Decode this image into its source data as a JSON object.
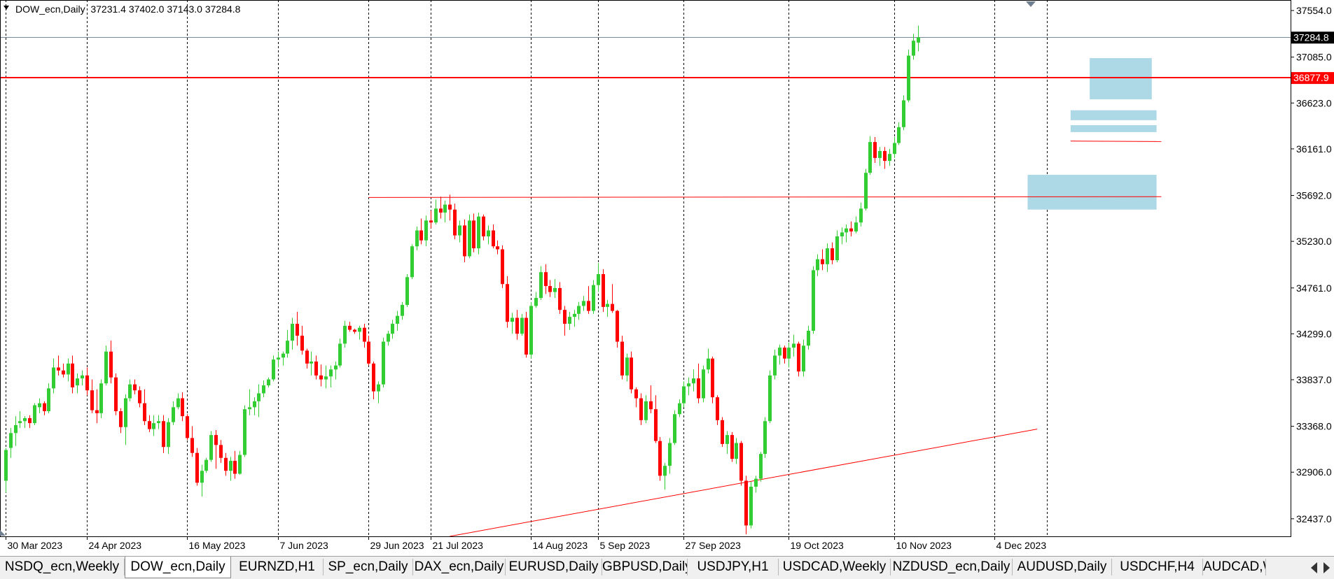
{
  "window": {
    "info_label": "DOW_ecn,Daily  37231.4 37402.0 37143.0 37284.8"
  },
  "tabs": [
    {
      "label": "NSDQ_ecn,Weekly",
      "active": false
    },
    {
      "label": "DOW_ecn,Daily",
      "active": true
    },
    {
      "label": "EURNZD,H1",
      "active": false
    },
    {
      "label": "SP_ecn,Daily",
      "active": false
    },
    {
      "label": "DAX_ecn,Daily",
      "active": false
    },
    {
      "label": "EURUSD,Daily",
      "active": false
    },
    {
      "label": "GBPUSD,Daily",
      "active": false
    },
    {
      "label": "USDJPY,H1",
      "active": false
    },
    {
      "label": "USDCAD,Weekly",
      "active": false
    },
    {
      "label": "NZDUSD_ecn,Daily",
      "active": false
    },
    {
      "label": "AUDUSD,Daily",
      "active": false
    },
    {
      "label": "USDCHF,H4",
      "active": false
    },
    {
      "label": "AUDCAD,W",
      "active": false
    }
  ],
  "colors": {
    "bull": "#32cd32",
    "bear": "#ff0000",
    "zone": "#add8e6",
    "hline": "#ff0000",
    "bid_line": "#778899",
    "grid": "#000000",
    "axis_text": "#000000"
  },
  "chart_data": {
    "type": "candlestick",
    "symbol": "DOW_ecn",
    "timeframe": "Daily",
    "ohlc": {
      "open": 37231.4,
      "high": 37402.0,
      "low": 37143.0,
      "close": 37284.8
    },
    "ylim": [
      32260,
      37660
    ],
    "y_ticks": [
      37554.0,
      37085.0,
      36623.0,
      36161.0,
      35692.0,
      35230.0,
      34761.0,
      34299.0,
      33837.0,
      33368.0,
      32906.0,
      32437.0
    ],
    "x_tick_labels": [
      "30 Mar 2023",
      "24 Apr 2023",
      "16 May 2023",
      "7 Jun 2023",
      "29 Jun 2023",
      "21 Jul 2023",
      "14 Aug 2023",
      "5 Sep 2023",
      "27 Sep 2023",
      "19 Oct 2023",
      "10 Nov 2023",
      "4 Dec 2023"
    ],
    "separator_labels_index": [
      0,
      17,
      38,
      57,
      76,
      89,
      110,
      124,
      142,
      164,
      186,
      207,
      218
    ],
    "current_price": 37284.8,
    "levels": [
      {
        "price": 36877.9,
        "label": "36877.9"
      }
    ],
    "price_marker": {
      "value": 37284.8,
      "label": "37284.8"
    },
    "support_lines": [
      {
        "kind": "horizontal",
        "x0": 76,
        "x1": 242,
        "y0": 35672,
        "y1": 35680
      },
      {
        "kind": "horizontal",
        "x0": 223,
        "x1": 242,
        "y0": 36240,
        "y1": 36235
      },
      {
        "kind": "trend",
        "x0": 93,
        "x1": 216,
        "y0": 32260,
        "y1": 33340
      }
    ],
    "zones": [
      {
        "x0": 227,
        "x1": 240,
        "y0": 36660,
        "y1": 37075
      },
      {
        "x0": 223,
        "x1": 241,
        "y0": 36450,
        "y1": 36550
      },
      {
        "x0": 223,
        "x1": 241,
        "y0": 36330,
        "y1": 36400
      },
      {
        "x0": 214,
        "x1": 241,
        "y0": 35550,
        "y1": 35900
      }
    ],
    "candles": [
      [
        32820,
        33150,
        32700,
        33130
      ],
      [
        33150,
        33350,
        33050,
        33300
      ],
      [
        33300,
        33470,
        33170,
        33380
      ],
      [
        33400,
        33520,
        33350,
        33420
      ],
      [
        33420,
        33470,
        33350,
        33450
      ],
      [
        33450,
        33480,
        33350,
        33400
      ],
      [
        33400,
        33600,
        33380,
        33580
      ],
      [
        33560,
        33650,
        33500,
        33600
      ],
      [
        33600,
        33620,
        33480,
        33520
      ],
      [
        33520,
        33800,
        33500,
        33750
      ],
      [
        33750,
        34050,
        33700,
        33960
      ],
      [
        33960,
        34080,
        33880,
        33930
      ],
      [
        33930,
        34000,
        33860,
        33890
      ],
      [
        33890,
        34050,
        33820,
        34000
      ],
      [
        34000,
        34080,
        33700,
        33760
      ],
      [
        33780,
        33900,
        33700,
        33850
      ],
      [
        33850,
        33930,
        33780,
        33880
      ],
      [
        33880,
        33960,
        33680,
        33730
      ],
      [
        33730,
        33840,
        33500,
        33530
      ],
      [
        33530,
        33740,
        33400,
        33500
      ],
      [
        33500,
        33840,
        33450,
        33800
      ],
      [
        33800,
        34180,
        33780,
        34120
      ],
      [
        34120,
        34230,
        33800,
        33860
      ],
      [
        33860,
        33900,
        33480,
        33520
      ],
      [
        33520,
        33550,
        33300,
        33360
      ],
      [
        33360,
        33690,
        33180,
        33650
      ],
      [
        33650,
        33840,
        33620,
        33790
      ],
      [
        33790,
        33840,
        33690,
        33730
      ],
      [
        33730,
        33770,
        33560,
        33600
      ],
      [
        33600,
        33740,
        33380,
        33420
      ],
      [
        33420,
        33480,
        33310,
        33340
      ],
      [
        33340,
        33480,
        33270,
        33400
      ],
      [
        33400,
        33480,
        33340,
        33420
      ],
      [
        33420,
        33480,
        33100,
        33160
      ],
      [
        33160,
        33450,
        33090,
        33410
      ],
      [
        33410,
        33620,
        33380,
        33560
      ],
      [
        33560,
        33700,
        33540,
        33650
      ],
      [
        33650,
        33710,
        33420,
        33470
      ],
      [
        33470,
        33490,
        33230,
        33250
      ],
      [
        33250,
        33370,
        33060,
        33100
      ],
      [
        33100,
        33150,
        32770,
        32800
      ],
      [
        32800,
        32980,
        32660,
        32920
      ],
      [
        32920,
        33050,
        32900,
        33030
      ],
      [
        33030,
        33320,
        33010,
        33280
      ],
      [
        33280,
        33330,
        32940,
        33180
      ],
      [
        33180,
        33230,
        33000,
        33050
      ],
      [
        33050,
        33100,
        32870,
        32920
      ],
      [
        32920,
        33060,
        32820,
        33020
      ],
      [
        33020,
        33120,
        32840,
        32890
      ],
      [
        32890,
        33120,
        32880,
        33080
      ],
      [
        33080,
        33580,
        33060,
        33540
      ],
      [
        33540,
        33740,
        33480,
        33560
      ],
      [
        33560,
        33660,
        33480,
        33620
      ],
      [
        33620,
        33790,
        33460,
        33700
      ],
      [
        33700,
        33830,
        33660,
        33780
      ],
      [
        33780,
        33860,
        33760,
        33840
      ],
      [
        33840,
        34080,
        33820,
        34040
      ],
      [
        34040,
        34120,
        33960,
        34060
      ],
      [
        34060,
        34120,
        33980,
        34100
      ],
      [
        34100,
        34340,
        34060,
        34230
      ],
      [
        34230,
        34460,
        34140,
        34400
      ],
      [
        34400,
        34520,
        34180,
        34280
      ],
      [
        34280,
        34380,
        34090,
        34130
      ],
      [
        34130,
        34150,
        33950,
        34000
      ],
      [
        34000,
        34120,
        33880,
        34020
      ],
      [
        34020,
        34080,
        33840,
        33880
      ],
      [
        33880,
        33990,
        33770,
        33840
      ],
      [
        33840,
        33980,
        33750,
        33870
      ],
      [
        33870,
        33980,
        33760,
        33940
      ],
      [
        33940,
        34020,
        33840,
        33980
      ],
      [
        33980,
        34250,
        33960,
        34200
      ],
      [
        34200,
        34430,
        34160,
        34380
      ],
      [
        34380,
        34420,
        34320,
        34340
      ],
      [
        34340,
        34350,
        34300,
        34320
      ],
      [
        34320,
        34380,
        34240,
        34360
      ],
      [
        34360,
        34400,
        34160,
        34220
      ],
      [
        34220,
        34280,
        33980,
        34000
      ],
      [
        34000,
        34020,
        33640,
        33720
      ],
      [
        33720,
        33820,
        33600,
        33790
      ],
      [
        33790,
        34260,
        33760,
        34220
      ],
      [
        34220,
        34330,
        34180,
        34300
      ],
      [
        34300,
        34440,
        34250,
        34400
      ],
      [
        34400,
        34530,
        34330,
        34480
      ],
      [
        34480,
        34620,
        34440,
        34590
      ],
      [
        34590,
        34900,
        34570,
        34870
      ],
      [
        34870,
        35200,
        34850,
        35180
      ],
      [
        35180,
        35380,
        35140,
        35340
      ],
      [
        35340,
        35460,
        35200,
        35240
      ],
      [
        35240,
        35490,
        35180,
        35440
      ],
      [
        35440,
        35540,
        35360,
        35420
      ],
      [
        35420,
        35650,
        35400,
        35560
      ],
      [
        35560,
        35680,
        35460,
        35520
      ],
      [
        35520,
        35640,
        35420,
        35600
      ],
      [
        35600,
        35700,
        35440,
        35550
      ],
      [
        35550,
        35610,
        35250,
        35290
      ],
      [
        35290,
        35440,
        35220,
        35390
      ],
      [
        35390,
        35450,
        35020,
        35080
      ],
      [
        35080,
        35500,
        35060,
        35440
      ],
      [
        35440,
        35510,
        35120,
        35160
      ],
      [
        35160,
        35520,
        35100,
        35480
      ],
      [
        35480,
        35500,
        35240,
        35280
      ],
      [
        35280,
        35390,
        35200,
        35340
      ],
      [
        35340,
        35400,
        35160,
        35180
      ],
      [
        35180,
        35240,
        35100,
        35150
      ],
      [
        35150,
        35190,
        34760,
        34800
      ],
      [
        34800,
        34880,
        34360,
        34420
      ],
      [
        34420,
        34510,
        34300,
        34460
      ],
      [
        34460,
        34540,
        34240,
        34300
      ],
      [
        34300,
        34500,
        34280,
        34460
      ],
      [
        34460,
        34520,
        34060,
        34090
      ],
      [
        34090,
        34620,
        34050,
        34580
      ],
      [
        34580,
        34720,
        34560,
        34660
      ],
      [
        34660,
        34980,
        34640,
        34920
      ],
      [
        34920,
        35000,
        34700,
        34780
      ],
      [
        34780,
        34840,
        34670,
        34720
      ],
      [
        34720,
        34850,
        34660,
        34760
      ],
      [
        34760,
        34820,
        34500,
        34540
      ],
      [
        34540,
        34580,
        34280,
        34400
      ],
      [
        34400,
        34520,
        34340,
        34470
      ],
      [
        34470,
        34540,
        34370,
        34500
      ],
      [
        34500,
        34620,
        34440,
        34580
      ],
      [
        34580,
        34680,
        34530,
        34630
      ],
      [
        34630,
        34780,
        34500,
        34530
      ],
      [
        34530,
        34840,
        34500,
        34790
      ],
      [
        34790,
        35010,
        34720,
        34900
      ],
      [
        34900,
        34950,
        34520,
        34570
      ],
      [
        34570,
        34640,
        34470,
        34600
      ],
      [
        34600,
        34800,
        34510,
        34530
      ],
      [
        34530,
        34540,
        34160,
        34220
      ],
      [
        34220,
        34280,
        33840,
        33880
      ],
      [
        33880,
        34100,
        33820,
        34060
      ],
      [
        34060,
        34120,
        33700,
        33740
      ],
      [
        33740,
        33760,
        33560,
        33650
      ],
      [
        33650,
        33700,
        33380,
        33430
      ],
      [
        33430,
        33680,
        33400,
        33620
      ],
      [
        33620,
        33780,
        33500,
        33540
      ],
      [
        33540,
        33680,
        33200,
        33220
      ],
      [
        33220,
        33260,
        32820,
        32870
      ],
      [
        32870,
        33000,
        32730,
        32970
      ],
      [
        32970,
        33250,
        32890,
        33200
      ],
      [
        33200,
        33530,
        33180,
        33490
      ],
      [
        33490,
        33640,
        33460,
        33600
      ],
      [
        33600,
        33820,
        33560,
        33770
      ],
      [
        33770,
        33860,
        33680,
        33800
      ],
      [
        33800,
        33940,
        33720,
        33850
      ],
      [
        33850,
        34000,
        33600,
        33650
      ],
      [
        33650,
        33980,
        33610,
        33940
      ],
      [
        33940,
        34150,
        33900,
        34050
      ],
      [
        34050,
        34070,
        33600,
        33660
      ],
      [
        33660,
        33680,
        33380,
        33430
      ],
      [
        33430,
        33460,
        33160,
        33190
      ],
      [
        33190,
        33320,
        33090,
        33280
      ],
      [
        33280,
        33310,
        33010,
        33040
      ],
      [
        33040,
        33250,
        32990,
        33200
      ],
      [
        33200,
        33220,
        32770,
        32820
      ],
      [
        32820,
        32870,
        32280,
        32370
      ],
      [
        32370,
        32810,
        32340,
        32760
      ],
      [
        32760,
        32870,
        32700,
        32840
      ],
      [
        32840,
        33110,
        32810,
        33090
      ],
      [
        33090,
        33460,
        33050,
        33420
      ],
      [
        33420,
        33930,
        33400,
        33880
      ],
      [
        33880,
        34140,
        33840,
        34080
      ],
      [
        34080,
        34190,
        33990,
        34160
      ],
      [
        34160,
        34180,
        34000,
        34050
      ],
      [
        34050,
        34210,
        33960,
        34160
      ],
      [
        34160,
        34290,
        34070,
        34200
      ],
      [
        34200,
        34220,
        33870,
        33920
      ],
      [
        33920,
        34240,
        33870,
        34180
      ],
      [
        34180,
        34380,
        34140,
        34330
      ],
      [
        34330,
        34980,
        34300,
        34940
      ],
      [
        34940,
        35100,
        34880,
        35050
      ],
      [
        35050,
        35150,
        34940,
        35000
      ],
      [
        35000,
        35210,
        34920,
        35160
      ],
      [
        35160,
        35220,
        35000,
        35040
      ],
      [
        35040,
        35340,
        35020,
        35280
      ],
      [
        35280,
        35370,
        35200,
        35320
      ],
      [
        35320,
        35400,
        35220,
        35360
      ],
      [
        35360,
        35430,
        35280,
        35330
      ],
      [
        35330,
        35480,
        35310,
        35420
      ],
      [
        35420,
        35620,
        35380,
        35560
      ],
      [
        35560,
        35960,
        35540,
        35920
      ],
      [
        35920,
        36290,
        35900,
        36230
      ],
      [
        36230,
        36280,
        36020,
        36070
      ],
      [
        36070,
        36180,
        35990,
        36140
      ],
      [
        36140,
        36180,
        35960,
        36040
      ],
      [
        36040,
        36160,
        35990,
        36110
      ],
      [
        36110,
        36280,
        36070,
        36220
      ],
      [
        36220,
        36430,
        36200,
        36380
      ],
      [
        36380,
        36700,
        36350,
        36650
      ],
      [
        36650,
        37160,
        36630,
        37100
      ],
      [
        37100,
        37320,
        37060,
        37250
      ],
      [
        37231.4,
        37402.0,
        37143.0,
        37284.8
      ]
    ]
  }
}
